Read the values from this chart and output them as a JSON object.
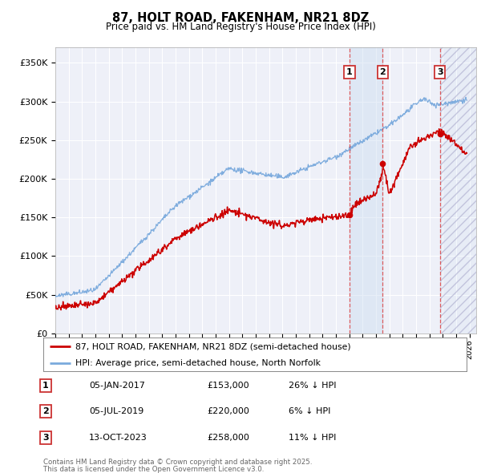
{
  "title": "87, HOLT ROAD, FAKENHAM, NR21 8DZ",
  "subtitle": "Price paid vs. HM Land Registry's House Price Index (HPI)",
  "ylabel_ticks": [
    "£0",
    "£50K",
    "£100K",
    "£150K",
    "£200K",
    "£250K",
    "£300K",
    "£350K"
  ],
  "ytick_values": [
    0,
    50000,
    100000,
    150000,
    200000,
    250000,
    300000,
    350000
  ],
  "ylim": [
    0,
    370000
  ],
  "xlim_start": 1995.0,
  "xlim_end": 2026.5,
  "background_color": "#ffffff",
  "plot_bg_color": "#eef0f8",
  "grid_color": "#ffffff",
  "transactions": [
    {
      "num": 1,
      "date_str": "05-JAN-2017",
      "price": 153000,
      "pct": "26%",
      "x": 2017.014
    },
    {
      "num": 2,
      "date_str": "05-JUL-2019",
      "price": 220000,
      "pct": "6%",
      "x": 2019.504
    },
    {
      "num": 3,
      "date_str": "13-OCT-2023",
      "price": 258000,
      "pct": "11%",
      "x": 2023.786
    }
  ],
  "legend_property_label": "87, HOLT ROAD, FAKENHAM, NR21 8DZ (semi-detached house)",
  "legend_hpi_label": "HPI: Average price, semi-detached house, North Norfolk",
  "footer_line1": "Contains HM Land Registry data © Crown copyright and database right 2025.",
  "footer_line2": "This data is licensed under the Open Government Licence v3.0.",
  "property_color": "#cc0000",
  "hpi_color": "#7aaadd",
  "vline_color": "#dd4444",
  "shading_color": "#ccddf0",
  "hatch_alpha": 0.18
}
